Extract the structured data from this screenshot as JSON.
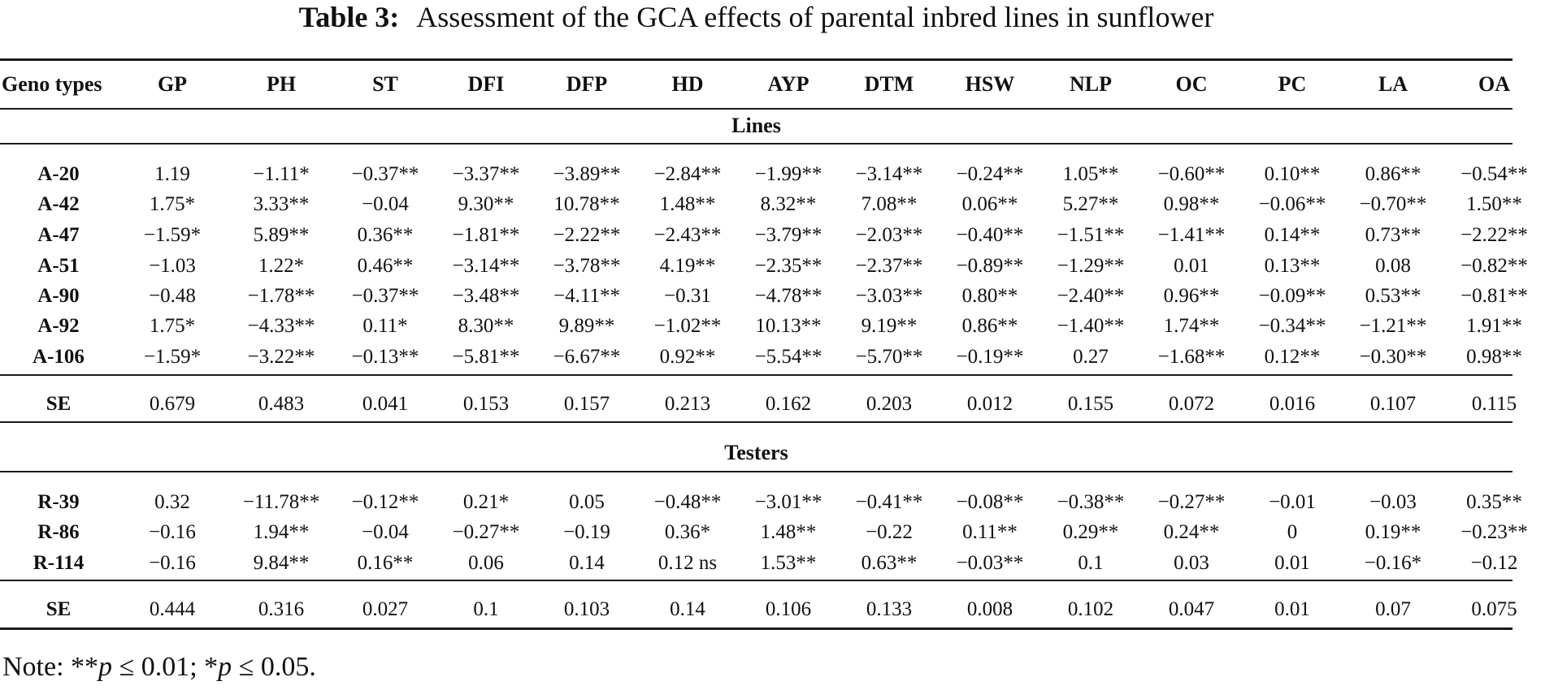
{
  "caption": {
    "label": "Table 3:",
    "text": "Assessment of the GCA effects of parental inbred lines in sunflower"
  },
  "columns": [
    "Geno types",
    "GP",
    "PH",
    "ST",
    "DFI",
    "DFP",
    "HD",
    "AYP",
    "DTM",
    "HSW",
    "NLP",
    "OC",
    "PC",
    "LA",
    "OA"
  ],
  "sections": {
    "lines_title": "Lines",
    "testers_title": "Testers"
  },
  "lines": [
    {
      "name": "A-20",
      "values": [
        "1.19",
        "−1.11*",
        "−0.37**",
        "−3.37**",
        "−3.89**",
        "−2.84**",
        "−1.99**",
        "−3.14**",
        "−0.24**",
        "1.05**",
        "−0.60**",
        "0.10**",
        "0.86**",
        "−0.54**"
      ]
    },
    {
      "name": "A-42",
      "values": [
        "1.75*",
        "3.33**",
        "−0.04",
        "9.30**",
        "10.78**",
        "1.48**",
        "8.32**",
        "7.08**",
        "0.06**",
        "5.27**",
        "0.98**",
        "−0.06**",
        "−0.70**",
        "1.50**"
      ]
    },
    {
      "name": "A-47",
      "values": [
        "−1.59*",
        "5.89**",
        "0.36**",
        "−1.81**",
        "−2.22**",
        "−2.43**",
        "−3.79**",
        "−2.03**",
        "−0.40**",
        "−1.51**",
        "−1.41**",
        "0.14**",
        "0.73**",
        "−2.22**"
      ]
    },
    {
      "name": "A-51",
      "values": [
        "−1.03",
        "1.22*",
        "0.46**",
        "−3.14**",
        "−3.78**",
        "4.19**",
        "−2.35**",
        "−2.37**",
        "−0.89**",
        "−1.29**",
        "0.01",
        "0.13**",
        "0.08",
        "−0.82**"
      ]
    },
    {
      "name": "A-90",
      "values": [
        "−0.48",
        "−1.78**",
        "−0.37**",
        "−3.48**",
        "−4.11**",
        "−0.31",
        "−4.78**",
        "−3.03**",
        "0.80**",
        "−2.40**",
        "0.96**",
        "−0.09**",
        "0.53**",
        "−0.81**"
      ]
    },
    {
      "name": "A-92",
      "values": [
        "1.75*",
        "−4.33**",
        "0.11*",
        "8.30**",
        "9.89**",
        "−1.02**",
        "10.13**",
        "9.19**",
        "0.86**",
        "−1.40**",
        "1.74**",
        "−0.34**",
        "−1.21**",
        "1.91**"
      ]
    },
    {
      "name": "A-106",
      "values": [
        "−1.59*",
        "−3.22**",
        "−0.13**",
        "−5.81**",
        "−6.67**",
        "0.92**",
        "−5.54**",
        "−5.70**",
        "−0.19**",
        "0.27",
        "−1.68**",
        "0.12**",
        "−0.30**",
        "0.98**"
      ]
    }
  ],
  "lines_se": {
    "name": "SE",
    "values": [
      "0.679",
      "0.483",
      "0.041",
      "0.153",
      "0.157",
      "0.213",
      "0.162",
      "0.203",
      "0.012",
      "0.155",
      "0.072",
      "0.016",
      "0.107",
      "0.115"
    ]
  },
  "testers": [
    {
      "name": "R-39",
      "values": [
        "0.32",
        "−11.78**",
        "−0.12**",
        "0.21*",
        "0.05",
        "−0.48**",
        "−3.01**",
        "−0.41**",
        "−0.08**",
        "−0.38**",
        "−0.27**",
        "−0.01",
        "−0.03",
        "0.35**"
      ]
    },
    {
      "name": "R-86",
      "values": [
        "−0.16",
        "1.94**",
        "−0.04",
        "−0.27**",
        "−0.19",
        "0.36*",
        "1.48**",
        "−0.22",
        "0.11**",
        "0.29**",
        "0.24**",
        "0",
        "0.19**",
        "−0.23**"
      ]
    },
    {
      "name": "R-114",
      "values": [
        "−0.16",
        "9.84**",
        "0.16**",
        "0.06",
        "0.14",
        "0.12 ns",
        "1.53**",
        "0.63**",
        "−0.03**",
        "0.1",
        "0.03",
        "0.01",
        "−0.16*",
        "−0.12"
      ]
    }
  ],
  "testers_se": {
    "name": "SE",
    "values": [
      "0.444",
      "0.316",
      "0.027",
      "0.1",
      "0.103",
      "0.14",
      "0.106",
      "0.133",
      "0.008",
      "0.102",
      "0.047",
      "0.01",
      "0.07",
      "0.075"
    ]
  },
  "note": {
    "prefix": "Note: **",
    "p1": "p",
    "mid": " ≤ 0.01; *",
    "p2": "p",
    "suffix": " ≤ 0.05."
  }
}
